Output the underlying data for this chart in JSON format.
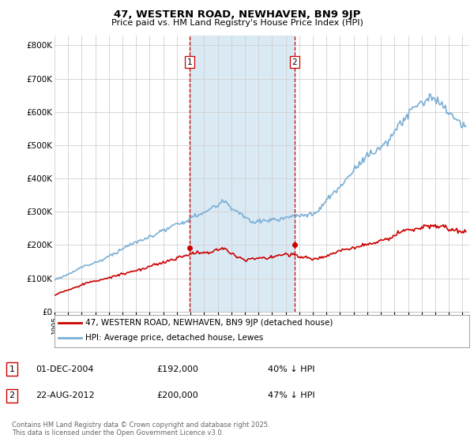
{
  "title": "47, WESTERN ROAD, NEWHAVEN, BN9 9JP",
  "subtitle": "Price paid vs. HM Land Registry's House Price Index (HPI)",
  "ylabel_ticks": [
    "£0",
    "£100K",
    "£200K",
    "£300K",
    "£400K",
    "£500K",
    "£600K",
    "£700K",
    "£800K"
  ],
  "ytick_values": [
    0,
    100000,
    200000,
    300000,
    400000,
    500000,
    600000,
    700000,
    800000
  ],
  "ylim": [
    0,
    830000
  ],
  "xlim_start": 1995.0,
  "xlim_end": 2025.5,
  "hpi_color": "#7bafd4",
  "price_color": "#cc0000",
  "shade_color": "#daeaf5",
  "vline_color": "#cc0000",
  "sale1_x": 2004.917,
  "sale1_y": 192000,
  "sale2_x": 2012.646,
  "sale2_y": 200000,
  "legend_line1": "47, WESTERN ROAD, NEWHAVEN, BN9 9JP (detached house)",
  "legend_line2": "HPI: Average price, detached house, Lewes",
  "annotation1_date": "01-DEC-2004",
  "annotation1_price": "£192,000",
  "annotation1_hpi": "40% ↓ HPI",
  "annotation2_date": "22-AUG-2012",
  "annotation2_price": "£200,000",
  "annotation2_hpi": "47% ↓ HPI",
  "footer": "Contains HM Land Registry data © Crown copyright and database right 2025.\nThis data is licensed under the Open Government Licence v3.0."
}
